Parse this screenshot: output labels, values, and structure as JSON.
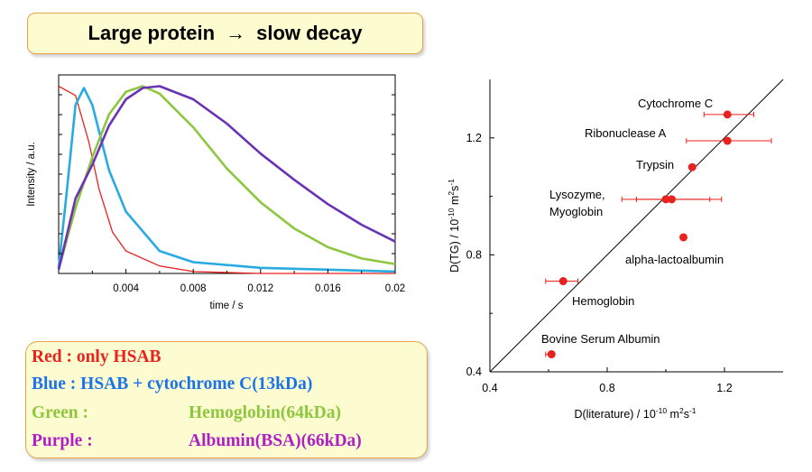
{
  "title": {
    "left": "Large protein",
    "arrow": "→",
    "right": "slow decay"
  },
  "legend": [
    {
      "color": "#e8231f",
      "label": "Red :",
      "desc": "only HSAB",
      "inline": true
    },
    {
      "color": "#1a73e8",
      "label": "Blue :",
      "desc": "HSAB + cytochrome C(13kDa)",
      "inline": true
    },
    {
      "color": "#8dc63f",
      "label": "Green :",
      "desc": "Hemoglobin(64kDa)",
      "inline": false
    },
    {
      "color": "#b01fc4",
      "label": "Purple :",
      "desc": "Albumin(BSA)(66kDa)",
      "inline": false
    }
  ],
  "chart_data": [
    {
      "type": "line",
      "title": "",
      "xlabel": "time / s",
      "ylabel": "Intensity / a.u.",
      "xlim": [
        0,
        0.02
      ],
      "ylim": [
        0,
        1.06
      ],
      "xticks": [
        "0.004",
        "0.008",
        "0.012",
        "0.016",
        "0.02"
      ],
      "xtick_values": [
        0.004,
        0.008,
        0.012,
        0.016,
        0.02
      ],
      "yticks_labeled": false,
      "series": [
        {
          "color": "#e8231f",
          "x": [
            0.0,
            0.001,
            0.0018,
            0.0024,
            0.0032,
            0.004,
            0.006,
            0.008,
            0.012,
            0.02
          ],
          "y": [
            1.0,
            0.95,
            0.7,
            0.45,
            0.22,
            0.12,
            0.04,
            0.01,
            0.0,
            0.0
          ]
        },
        {
          "color": "#29abe2",
          "x": [
            0.0,
            0.0005,
            0.001,
            0.0015,
            0.002,
            0.003,
            0.004,
            0.006,
            0.008,
            0.012,
            0.016,
            0.02
          ],
          "y": [
            0.03,
            0.45,
            0.9,
            0.99,
            0.9,
            0.55,
            0.33,
            0.12,
            0.06,
            0.03,
            0.02,
            0.01
          ]
        },
        {
          "color": "#8dc63f",
          "x": [
            0.0,
            0.001,
            0.002,
            0.003,
            0.004,
            0.005,
            0.006,
            0.008,
            0.01,
            0.012,
            0.014,
            0.016,
            0.018,
            0.02
          ],
          "y": [
            0.02,
            0.35,
            0.62,
            0.85,
            0.97,
            1.0,
            0.96,
            0.78,
            0.56,
            0.38,
            0.24,
            0.14,
            0.08,
            0.05
          ]
        },
        {
          "color": "#6a33b5",
          "x": [
            0.0,
            0.001,
            0.002,
            0.003,
            0.004,
            0.005,
            0.006,
            0.008,
            0.01,
            0.012,
            0.014,
            0.016,
            0.018,
            0.02
          ],
          "y": [
            0.02,
            0.4,
            0.58,
            0.79,
            0.93,
            0.99,
            1.0,
            0.93,
            0.8,
            0.64,
            0.5,
            0.37,
            0.26,
            0.17
          ]
        }
      ]
    },
    {
      "type": "scatter",
      "title": "",
      "xlabel": "D(literature) / 10-10 m2s-1",
      "ylabel": "D(TG) / 10-10 m2s-1",
      "xlim": [
        0.4,
        1.4
      ],
      "ylim": [
        0.4,
        1.4
      ],
      "xticks": [
        "0.4",
        "0.8",
        "1.2"
      ],
      "yticks": [
        "0.4",
        "0.8",
        "1.2"
      ],
      "diagonal": "y = x",
      "points": [
        {
          "name": "Cytochrome C",
          "x": 1.21,
          "y": 1.28,
          "xerr": [
            1.13,
            1.3
          ]
        },
        {
          "name": "Ribonuclease A",
          "x": 1.21,
          "y": 1.19,
          "xerr": [
            1.07,
            1.36
          ]
        },
        {
          "name": "Trypsin",
          "x": 1.09,
          "y": 1.1,
          "xerr": null
        },
        {
          "name": "Lysozyme,",
          "name2": "Myoglobin",
          "x": 1.0,
          "y": 0.99,
          "xerr": [
            0.85,
            1.15
          ]
        },
        {
          "name": "",
          "x": 1.02,
          "y": 0.99,
          "xerr": [
            0.9,
            1.19
          ]
        },
        {
          "name": "alpha-lactoalbumin",
          "x": 1.06,
          "y": 0.86,
          "xerr": null
        },
        {
          "name": "Hemoglobin",
          "x": 0.65,
          "y": 0.71,
          "xerr": [
            0.59,
            0.7
          ]
        },
        {
          "name": "Bovine Serum Albumin",
          "x": 0.61,
          "y": 0.46,
          "xerr": [
            0.59,
            0.62
          ]
        }
      ]
    }
  ]
}
